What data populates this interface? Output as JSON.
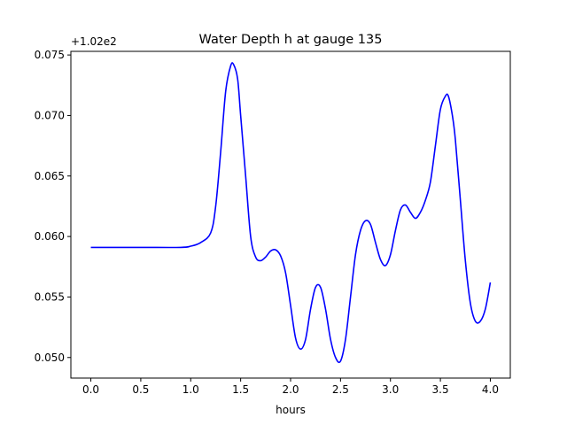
{
  "chart_data": {
    "type": "line",
    "title": "Water Depth h at gauge 135",
    "xlabel": "hours",
    "ylabel": "",
    "offset_label": "+1.02e2",
    "xlim": [
      -0.2,
      4.2
    ],
    "ylim": [
      0.0483,
      0.0753
    ],
    "x_ticks": [
      0.0,
      0.5,
      1.0,
      1.5,
      2.0,
      2.5,
      3.0,
      3.5,
      4.0
    ],
    "x_tick_labels": [
      "0.0",
      "0.5",
      "1.0",
      "1.5",
      "2.0",
      "2.5",
      "3.0",
      "3.5",
      "4.0"
    ],
    "y_ticks": [
      0.05,
      0.055,
      0.06,
      0.065,
      0.07,
      0.075
    ],
    "y_tick_labels": [
      "0.050",
      "0.055",
      "0.060",
      "0.065",
      "0.070",
      "0.075"
    ],
    "grid": false,
    "series": [
      {
        "color": "#0000ff",
        "x": [
          0.0,
          0.5,
          0.9,
          1.0,
          1.1,
          1.2,
          1.25,
          1.3,
          1.35,
          1.4,
          1.43,
          1.47,
          1.5,
          1.55,
          1.6,
          1.65,
          1.7,
          1.75,
          1.8,
          1.85,
          1.9,
          1.95,
          2.0,
          2.05,
          2.1,
          2.15,
          2.2,
          2.25,
          2.3,
          2.35,
          2.4,
          2.45,
          2.5,
          2.55,
          2.6,
          2.65,
          2.7,
          2.75,
          2.8,
          2.85,
          2.9,
          2.95,
          3.0,
          3.05,
          3.1,
          3.15,
          3.2,
          3.25,
          3.3,
          3.35,
          3.4,
          3.45,
          3.5,
          3.55,
          3.58,
          3.62,
          3.65,
          3.7,
          3.75,
          3.8,
          3.85,
          3.9,
          3.95,
          4.0
        ],
        "y": [
          0.0591,
          0.0591,
          0.0591,
          0.0592,
          0.0595,
          0.0603,
          0.0625,
          0.067,
          0.072,
          0.0741,
          0.0742,
          0.073,
          0.07,
          0.065,
          0.06,
          0.0583,
          0.058,
          0.0583,
          0.0588,
          0.0589,
          0.0584,
          0.057,
          0.0543,
          0.0516,
          0.0507,
          0.0515,
          0.054,
          0.0558,
          0.0558,
          0.054,
          0.0515,
          0.05,
          0.0497,
          0.0515,
          0.055,
          0.0585,
          0.0605,
          0.0613,
          0.061,
          0.0595,
          0.0581,
          0.0576,
          0.0585,
          0.0605,
          0.0622,
          0.0626,
          0.062,
          0.0615,
          0.062,
          0.063,
          0.0645,
          0.0675,
          0.0705,
          0.0716,
          0.0716,
          0.07,
          0.068,
          0.063,
          0.058,
          0.0545,
          0.053,
          0.053,
          0.054,
          0.0562
        ]
      }
    ]
  }
}
